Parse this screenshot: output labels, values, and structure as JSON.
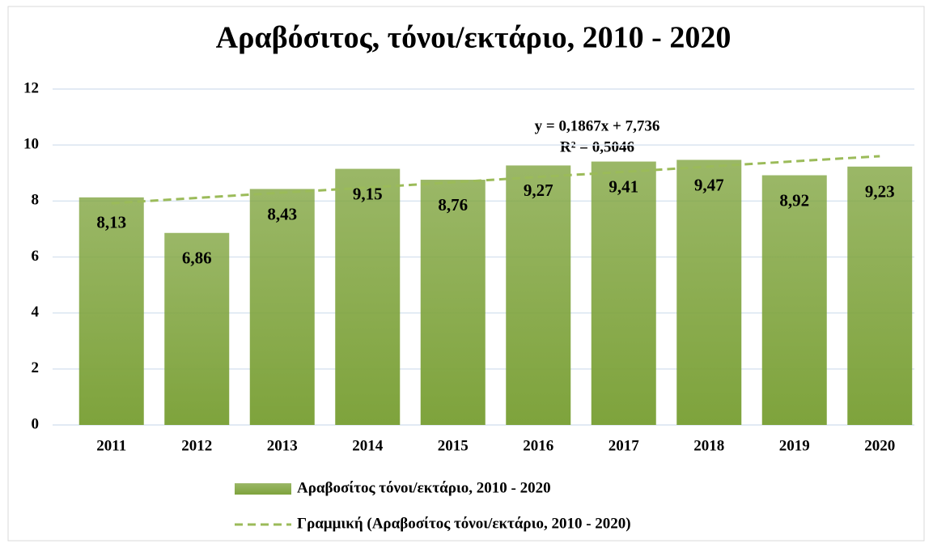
{
  "chart_data": {
    "type": "bar",
    "title": "Αραβόσιτος, τόνοι/εκτάριο, 2010 - 2020",
    "categories": [
      "2011",
      "2012",
      "2013",
      "2014",
      "2015",
      "2016",
      "2017",
      "2018",
      "2019",
      "2020"
    ],
    "series": [
      {
        "name": "Αραβοσίτος τόνοι/εκτάριο, 2010 - 2020",
        "type": "bar",
        "color": "#7ea33c",
        "values": [
          8.13,
          6.86,
          8.43,
          9.15,
          8.76,
          9.27,
          9.41,
          9.47,
          8.92,
          9.23
        ],
        "value_labels": [
          "8,13",
          "6,86",
          "8,43",
          "9,15",
          "8,76",
          "9,27",
          "9,41",
          "9,47",
          "8,92",
          "9,23"
        ]
      },
      {
        "name": "Γραμμική (Αραβοσίτος τόνοι/εκτάριο, 2010 - 2020)",
        "type": "line",
        "color": "#9bbb59",
        "dashed": true,
        "values": [
          7.92,
          8.11,
          8.3,
          8.48,
          8.67,
          8.86,
          9.04,
          9.23,
          9.42,
          9.6
        ]
      }
    ],
    "annotations": [
      "y = 0,1867x + 7,736",
      "R² = 0,5046"
    ],
    "ylim": [
      0,
      12
    ],
    "yticks": [
      0,
      2,
      4,
      6,
      8,
      10,
      12
    ],
    "grid": true,
    "legend": "bottom"
  }
}
